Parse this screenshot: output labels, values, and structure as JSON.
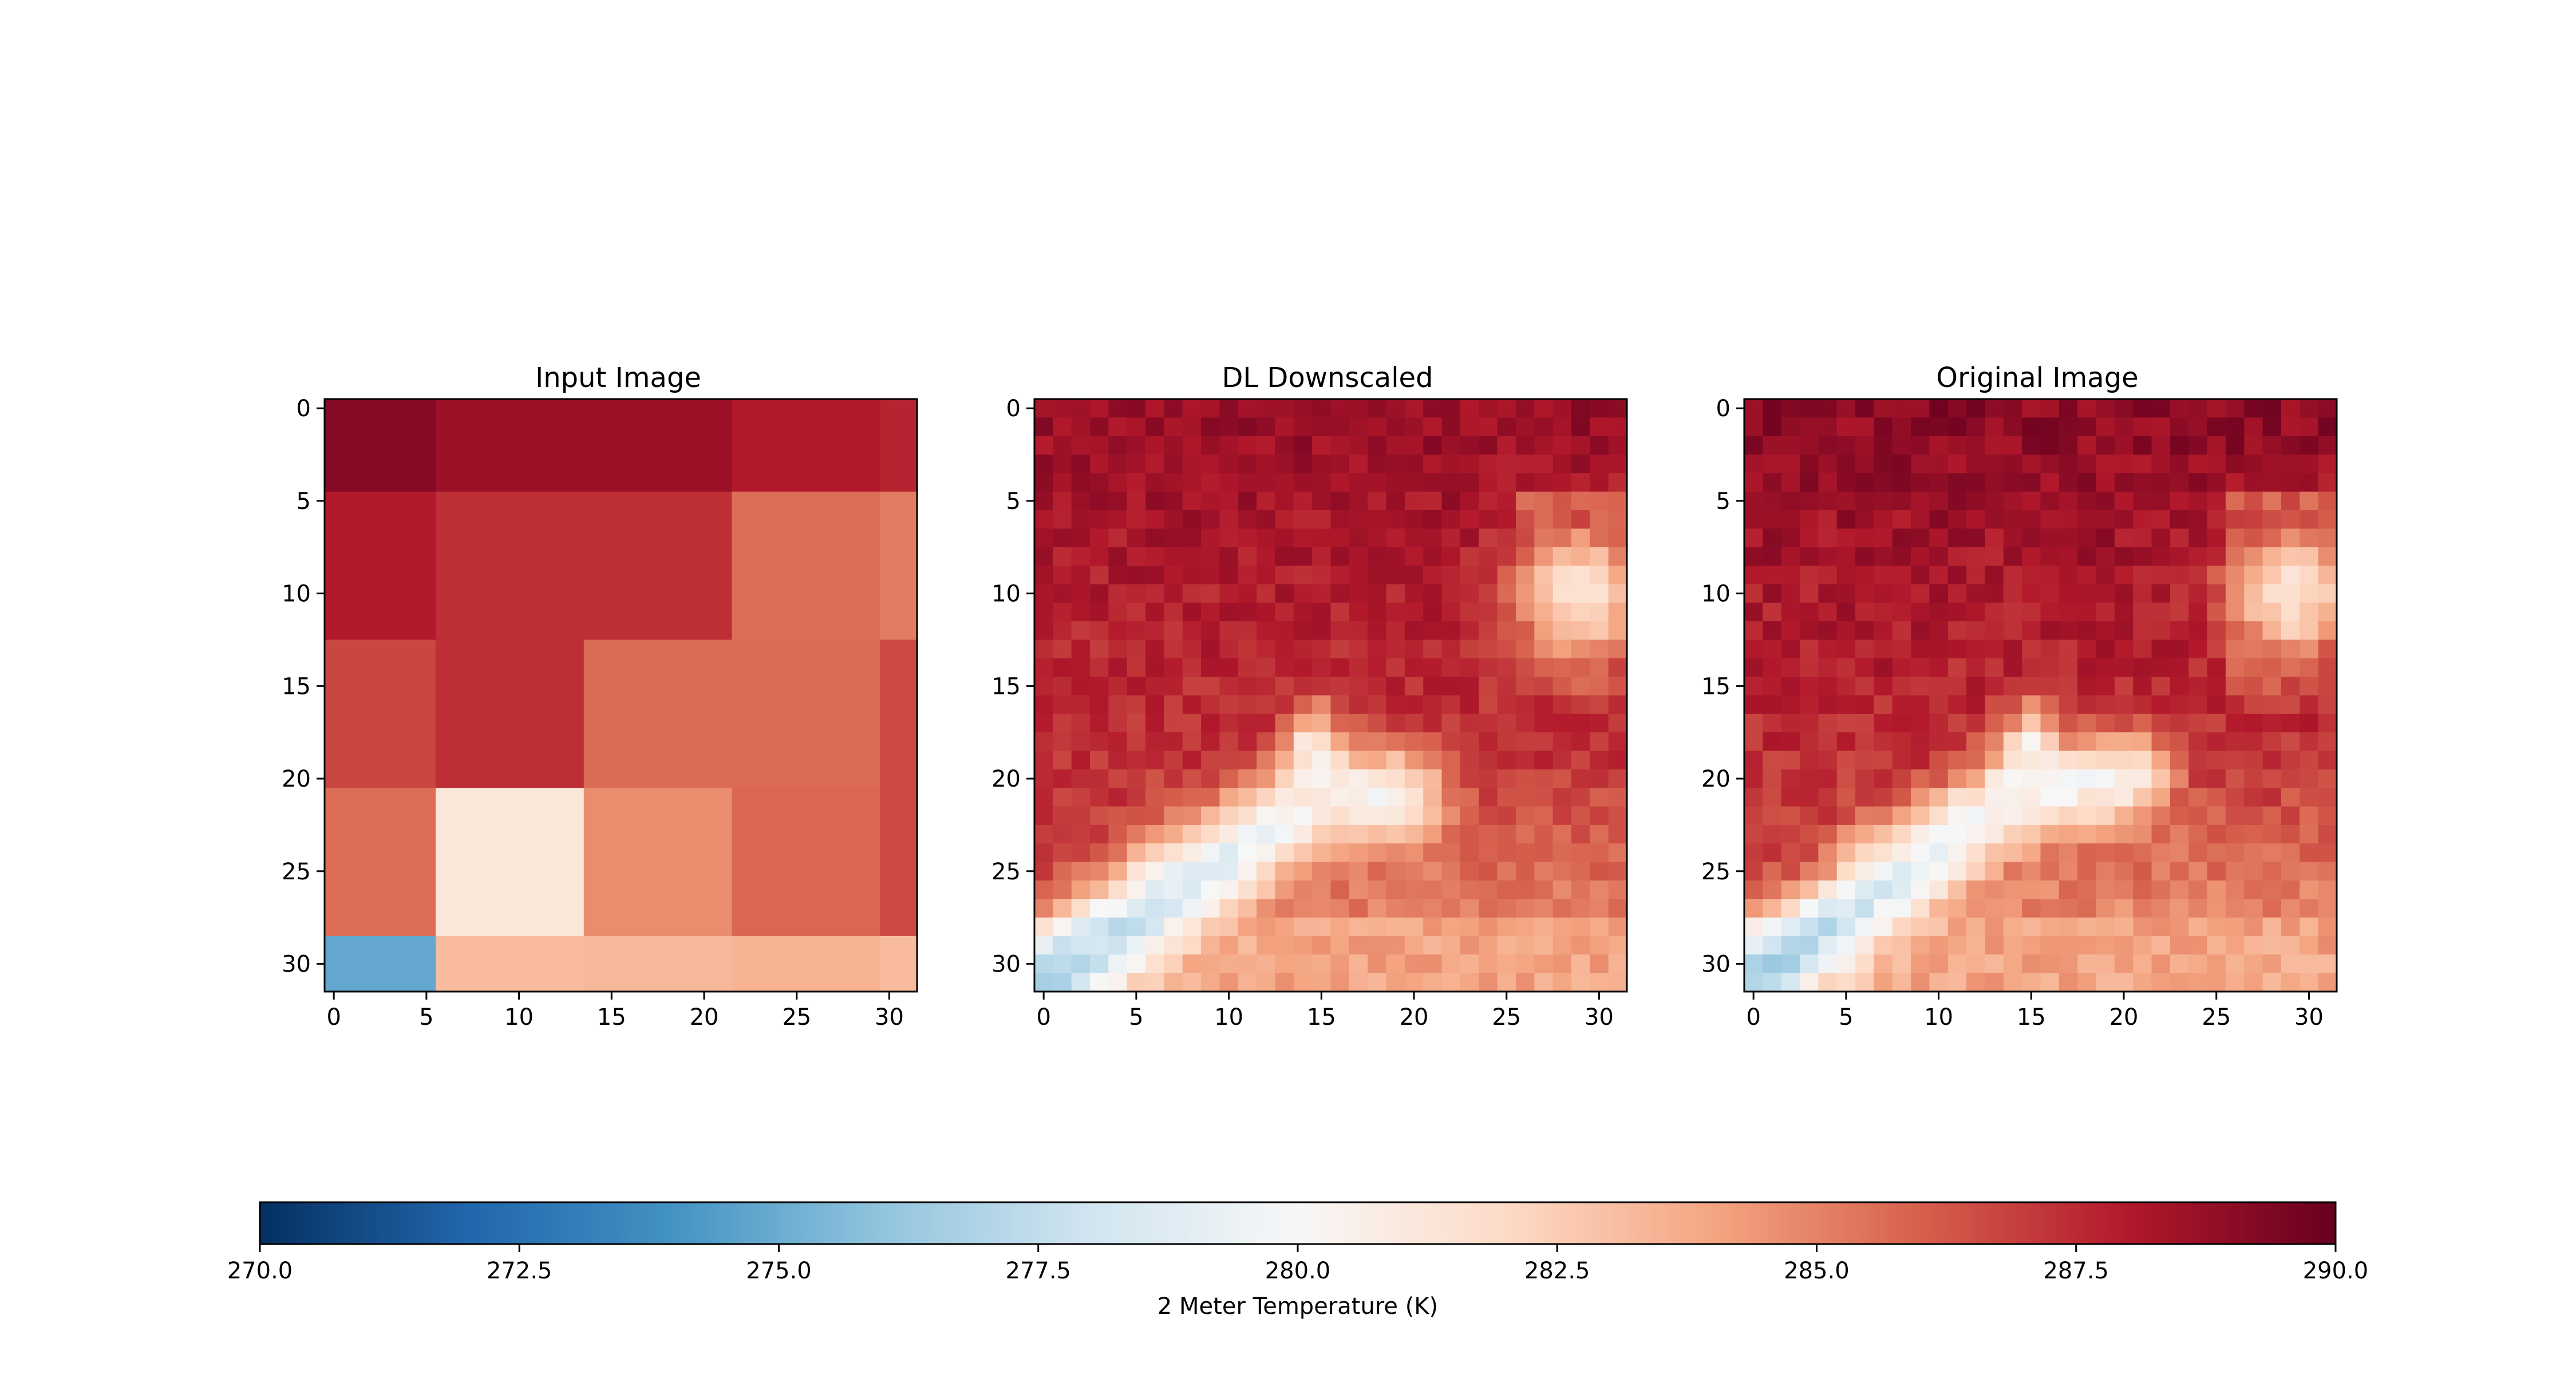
{
  "chart_data": {
    "type": "heatmap",
    "colormap": "RdBu_r",
    "colorbar": {
      "label": "2 Meter Temperature (K)",
      "vmin": 270.0,
      "vmax": 290.0,
      "ticks": [
        "270.0",
        "272.5",
        "275.0",
        "277.5",
        "280.0",
        "282.5",
        "285.0",
        "287.5",
        "290.0"
      ],
      "placement": "bottom"
    },
    "panels": [
      {
        "title": "Input Image",
        "grid_size": 32,
        "xticks": [
          "0",
          "5",
          "10",
          "15",
          "20",
          "25",
          "30"
        ],
        "yticks": [
          "0",
          "5",
          "10",
          "15",
          "20",
          "25",
          "30"
        ],
        "x_cell_edges": [
          0,
          6,
          14,
          22,
          30,
          32
        ],
        "y_cell_edges": [
          0,
          5,
          13,
          21,
          29,
          32
        ],
        "values": [
          [
            289.2,
            288.6,
            288.6,
            288.0,
            287.7
          ],
          [
            288.0,
            287.4,
            287.4,
            285.6,
            285.2
          ],
          [
            286.7,
            287.4,
            285.7,
            285.7,
            286.6
          ],
          [
            285.6,
            281.2,
            284.7,
            285.8,
            286.6
          ],
          [
            274.8,
            283.2,
            283.3,
            283.5,
            283.2
          ]
        ]
      },
      {
        "title": "DL Downscaled",
        "grid_size": 32,
        "xticks": [
          "0",
          "5",
          "10",
          "15",
          "20",
          "25",
          "30"
        ],
        "yticks": [
          "0",
          "5",
          "10",
          "15",
          "20",
          "25",
          "30"
        ],
        "field": {
          "base_top": 288.7,
          "base_bottom": 286.3,
          "band": {
            "from": [
              0,
              31
            ],
            "via": [
              15,
              21
            ],
            "to": [
              19,
              21
            ],
            "width": 1.8,
            "min_temp": 276.8
          },
          "plume": {
            "x": 14.5,
            "y_top": 16,
            "y_bottom": 21,
            "temp": 280.8
          },
          "hotspot": {
            "x": 29,
            "y": 10,
            "radius": 3.6,
            "temp": 281.4
          },
          "lower_right_temp": 284.8,
          "noise": 0.7,
          "seed": 11
        }
      },
      {
        "title": "Original Image",
        "grid_size": 32,
        "xticks": [
          "0",
          "5",
          "10",
          "15",
          "20",
          "25",
          "30"
        ],
        "yticks": [
          "0",
          "5",
          "10",
          "15",
          "20",
          "25",
          "30"
        ],
        "field": {
          "base_top": 289.0,
          "base_bottom": 286.3,
          "band": {
            "from": [
              0,
              31
            ],
            "via": [
              14,
              21
            ],
            "to": [
              20,
              20
            ],
            "width": 1.7,
            "min_temp": 276.6
          },
          "plume": {
            "x": 15,
            "y_top": 16,
            "y_bottom": 21,
            "temp": 280.6
          },
          "hotspot": {
            "x": 29,
            "y": 10,
            "radius": 3.3,
            "temp": 280.9
          },
          "lower_right_temp": 284.4,
          "noise": 0.8,
          "seed": 29
        }
      }
    ]
  }
}
